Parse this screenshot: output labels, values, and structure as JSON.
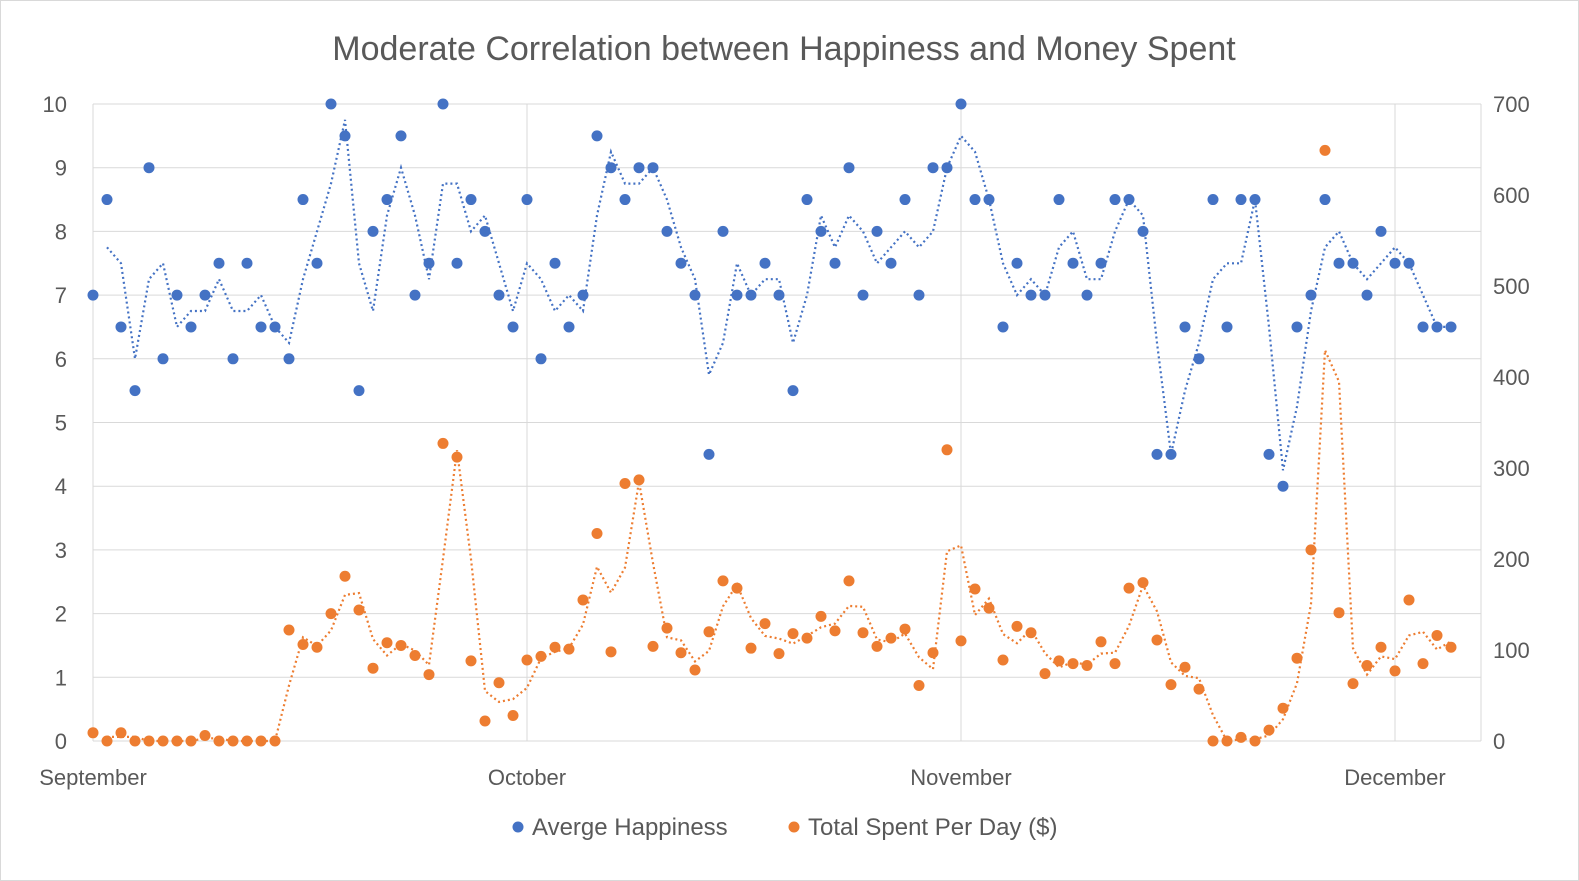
{
  "chart_data": {
    "type": "scatter",
    "title": "Moderate Correlation between Happiness and Money Spent",
    "x_axis": {
      "unit": "day",
      "range": [
        0,
        97
      ],
      "tick_labels": [
        {
          "label": "September",
          "x": 0
        },
        {
          "label": "October",
          "x": 31
        },
        {
          "label": "November",
          "x": 62
        },
        {
          "label": "December",
          "x": 93
        }
      ],
      "major_gridlines": true
    },
    "y_axis_left": {
      "range": [
        0,
        10
      ],
      "ticks": [
        0,
        1,
        2,
        3,
        4,
        5,
        6,
        7,
        8,
        9,
        10
      ]
    },
    "y_axis_right": {
      "range": [
        0,
        700
      ],
      "ticks": [
        0,
        100,
        200,
        300,
        400,
        500,
        600,
        700
      ]
    },
    "grid": true,
    "legend": {
      "position": "bottom"
    },
    "series": [
      {
        "name": "Averge Happiness",
        "axis": "left",
        "color": "#4472C4",
        "trendline": "moving average (2 points), dotted",
        "values": [
          7,
          8.5,
          6.5,
          5.5,
          9,
          6,
          7,
          6.5,
          7,
          7.5,
          6,
          7.5,
          6.5,
          6.5,
          6,
          8.5,
          7.5,
          10,
          9.5,
          5.5,
          8,
          8.5,
          9.5,
          7,
          7.5,
          10,
          7.5,
          8.5,
          8,
          7,
          6.5,
          8.5,
          6,
          7.5,
          6.5,
          7,
          9.5,
          9,
          8.5,
          9,
          9,
          8,
          7.5,
          7,
          4.5,
          8,
          7,
          7,
          7.5,
          7,
          5.5,
          8.5,
          8,
          7.5,
          9,
          7,
          8,
          7.5,
          8.5,
          7,
          9,
          9,
          10,
          8.5,
          8.5,
          6.5,
          7.5,
          7,
          7,
          8.5,
          7.5,
          7,
          7.5,
          8.5,
          8.5,
          8,
          4.5,
          4.5,
          6.5,
          6,
          8.5,
          6.5,
          8.5,
          8.5,
          4.5,
          4,
          6.5,
          7,
          8.5,
          7.5,
          7.5,
          7,
          8,
          7.5,
          7.5,
          6.5,
          6.5,
          6.5
        ]
      },
      {
        "name": "Total Spent Per Day ($)",
        "axis": "right",
        "color": "#ED7D31",
        "trendline": "moving average (2 points), dotted",
        "values": [
          9,
          0,
          9,
          0,
          0,
          0,
          0,
          0,
          6,
          0,
          0,
          0,
          0,
          0,
          122,
          106,
          103,
          140,
          181,
          144,
          80,
          108,
          105,
          94,
          73,
          327,
          312,
          88,
          22,
          64,
          28,
          89,
          93,
          103,
          101,
          155,
          228,
          98,
          283,
          287,
          104,
          124,
          97,
          78,
          120,
          176,
          168,
          102,
          129,
          96,
          118,
          113,
          137,
          121,
          176,
          119,
          104,
          113,
          123,
          61,
          97,
          320,
          110,
          167,
          146,
          89,
          126,
          119,
          74,
          88,
          85,
          83,
          109,
          85,
          168,
          174,
          111,
          62,
          81,
          57,
          0,
          0,
          4,
          0,
          12,
          36,
          91,
          210,
          649,
          141,
          63,
          83,
          103,
          77,
          155,
          85,
          116,
          103
        ]
      }
    ]
  }
}
